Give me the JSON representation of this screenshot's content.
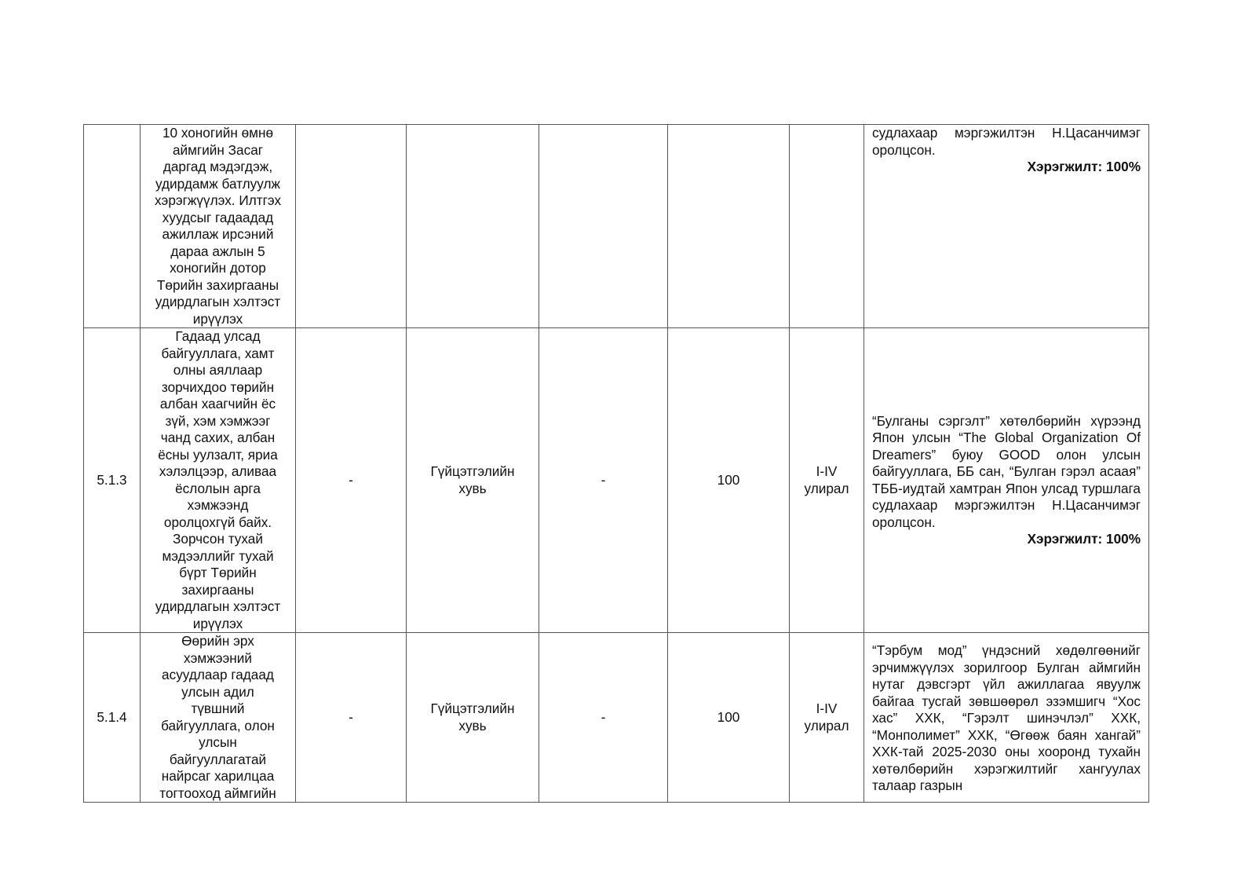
{
  "rows": [
    {
      "num": "",
      "activity": "10 хоногийн өмнө\nаймгийн Засаг\nдаргад мэдэгдэж,\nудирдамж батлуулж\nхэрэгжүүлэх. Илтгэх\nхуудсыг гадаадад\nажиллаж ирсэний\nдараа ажлын 5\nхоногийн дотор\nТөрийн захиргааны\nудирдлагын хэлтэст\nирүүлэх",
      "c3": "",
      "c4": "",
      "c5": "",
      "c6": "",
      "c7": "",
      "report": "судлахаар мэргэжилтэн Н.Цасанчимэг оролцсон.",
      "result": "Хэрэгжилт: 100%"
    },
    {
      "num": "5.1.3",
      "activity": "Гадаад улсад\nбайгууллага, хамт\nолны аяллаар\nзорчихдоо төрийн\nалбан хаагчийн ёс\nзүй, хэм хэмжээг\nчанд сахих, албан\nёсны уулзалт, яриа\nхэлэлцээр, аливаа\nёслолын арга\nхэмжээнд\nоролцохгүй байх.\nЗорчсон тухай\nмэдээллийг тухай\nбүрт Төрийн\nзахиргааны\nудирдлагын хэлтэст\nирүүлэх",
      "c3": "-",
      "c4": "Гүйцэтгэлийн\nхувь",
      "c5": "-",
      "c6": "100",
      "c7": "I-IV\nулирал",
      "report": "“Булганы сэргэлт” хөтөлбөрийн хүрээнд Япон улсын “The Global Organization Of Dreamers” буюу GOOD олон улсын байгууллага, ББ сан, “Булган гэрэл асаая” ТББ-иудтай хамтран Япон улсад туршлага судлахаар мэргэжилтэн Н.Цасанчимэг оролцсон.",
      "result": "Хэрэгжилт: 100%"
    },
    {
      "num": "5.1.4",
      "activity": "Өөрийн эрх\nхэмжээний\nасуудлаар гадаад\nулсын адил\nтүвшний\nбайгууллага, олон\nулсын\nбайгууллагатай\nнайрсаг харилцаа\nтогтооход аймгийн",
      "c3": "-",
      "c4": "Гүйцэтгэлийн\nхувь",
      "c5": "-",
      "c6": "100",
      "c7": "I-IV\nулирал",
      "report": "“Тэрбум мод” үндэсний хөдөлгөөнийг эрчимжүүлэх зорилгоор Булган аймгийн нутаг дэвсгэрт үйл ажиллагаа явуулж байгаа тусгай зөвшөөрөл эзэмшигч “Хос хас” ХХК, “Гэрэлт шинэчлэл” ХХК, “Монполимет” ХХК, “Өгөөж баян хангай” ХХК-тай 2025-2030 оны хооронд тухайн хөтөлбөрийн хэрэгжилтийг хангуулах талаар газрын",
      "result": ""
    }
  ]
}
